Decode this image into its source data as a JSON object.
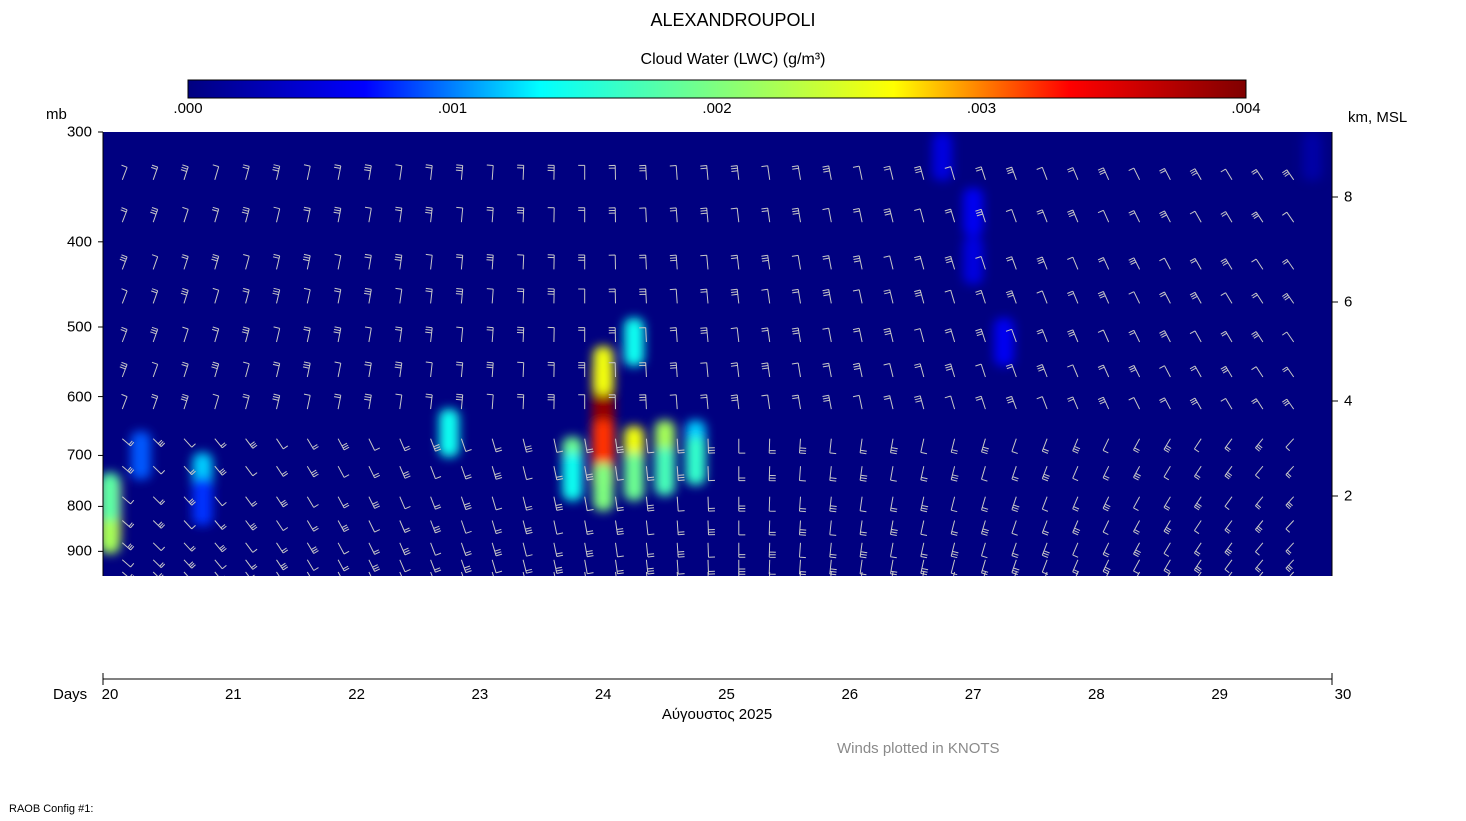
{
  "header": {
    "title": "ALEXANDROUPOLI",
    "colorbar_title": "Cloud Water (LWC) (g/m³)"
  },
  "colorbar": {
    "ticks": [
      ".000",
      ".001",
      ".002",
      ".003",
      ".004"
    ],
    "colors": [
      "#000080",
      "#0000ff",
      "#00ffff",
      "#7fff7f",
      "#ffff00",
      "#ff0000",
      "#800000"
    ]
  },
  "axes": {
    "y_left_unit": "mb",
    "y_right_unit": "km, MSL",
    "pressure_ticks": [
      "300",
      "400",
      "500",
      "600",
      "700",
      "800",
      "900"
    ],
    "height_ticks": [
      "8",
      "6",
      "4",
      "2"
    ],
    "days_label": "Days",
    "day_ticks": [
      "20",
      "21",
      "22",
      "23",
      "24",
      "25",
      "26",
      "27",
      "28",
      "29",
      "30"
    ],
    "month_label": "Αύγουστος 2025"
  },
  "footer": {
    "winds_note": "Winds plotted in KNOTS",
    "config_note": "RAOB Config #1:"
  },
  "chart_data": {
    "type": "heatmap",
    "title": "ALEXANDROUPOLI",
    "subtitle": "Cloud Water (LWC) (g/m³)",
    "xlabel": "Days",
    "x_unit_label": "Αύγουστος 2025",
    "ylabel": "mb",
    "y2label": "km, MSL",
    "xlim": [
      "2025-08-20",
      "2025-08-30"
    ],
    "ylim_mb": [
      960,
      300
    ],
    "y_scale": "log-pressure",
    "zlim": [
      0.0,
      0.004
    ],
    "background_value": 0.0,
    "cells": [
      {
        "day": "2025-08-20T00",
        "p_mb": 810,
        "value": 0.0033
      },
      {
        "day": "2025-08-20T00",
        "p_mb": 850,
        "value": 0.0022
      },
      {
        "day": "2025-08-20T00",
        "p_mb": 780,
        "value": 0.0018
      },
      {
        "day": "2025-08-20T06",
        "p_mb": 700,
        "value": 0.0009
      },
      {
        "day": "2025-08-20T18",
        "p_mb": 740,
        "value": 0.0012
      },
      {
        "day": "2025-08-20T18",
        "p_mb": 790,
        "value": 0.0008
      },
      {
        "day": "2025-08-22T18",
        "p_mb": 660,
        "value": 0.0014
      },
      {
        "day": "2025-08-23T18",
        "p_mb": 710,
        "value": 0.0019
      },
      {
        "day": "2025-08-23T18",
        "p_mb": 740,
        "value": 0.0014
      },
      {
        "day": "2025-08-24T00",
        "p_mb": 600,
        "value": 0.0036
      },
      {
        "day": "2025-08-24T00",
        "p_mb": 640,
        "value": 0.0039
      },
      {
        "day": "2025-08-24T00",
        "p_mb": 560,
        "value": 0.0026
      },
      {
        "day": "2025-08-24T00",
        "p_mb": 700,
        "value": 0.0032
      },
      {
        "day": "2025-08-24T00",
        "p_mb": 760,
        "value": 0.002
      },
      {
        "day": "2025-08-24T06",
        "p_mb": 520,
        "value": 0.0014
      },
      {
        "day": "2025-08-24T06",
        "p_mb": 690,
        "value": 0.0026
      },
      {
        "day": "2025-08-24T06",
        "p_mb": 740,
        "value": 0.0019
      },
      {
        "day": "2025-08-24T12",
        "p_mb": 680,
        "value": 0.0022
      },
      {
        "day": "2025-08-24T12",
        "p_mb": 730,
        "value": 0.0017
      },
      {
        "day": "2025-08-24T18",
        "p_mb": 680,
        "value": 0.0012
      },
      {
        "day": "2025-08-24T18",
        "p_mb": 710,
        "value": 0.0016
      },
      {
        "day": "2025-08-26T18",
        "p_mb": 320,
        "value": 0.0005
      },
      {
        "day": "2025-08-27T00",
        "p_mb": 370,
        "value": 0.0006
      },
      {
        "day": "2025-08-27T00",
        "p_mb": 420,
        "value": 0.0005
      },
      {
        "day": "2025-08-27T06",
        "p_mb": 520,
        "value": 0.0006
      },
      {
        "day": "2025-08-29T18",
        "p_mb": 320,
        "value": 0.0002
      }
    ],
    "wind_barb_rows_mb": [
      340,
      380,
      430,
      470,
      520,
      570,
      620,
      670,
      720,
      780,
      830,
      880,
      920,
      950
    ],
    "wind_barb_columns_days": 41
  }
}
